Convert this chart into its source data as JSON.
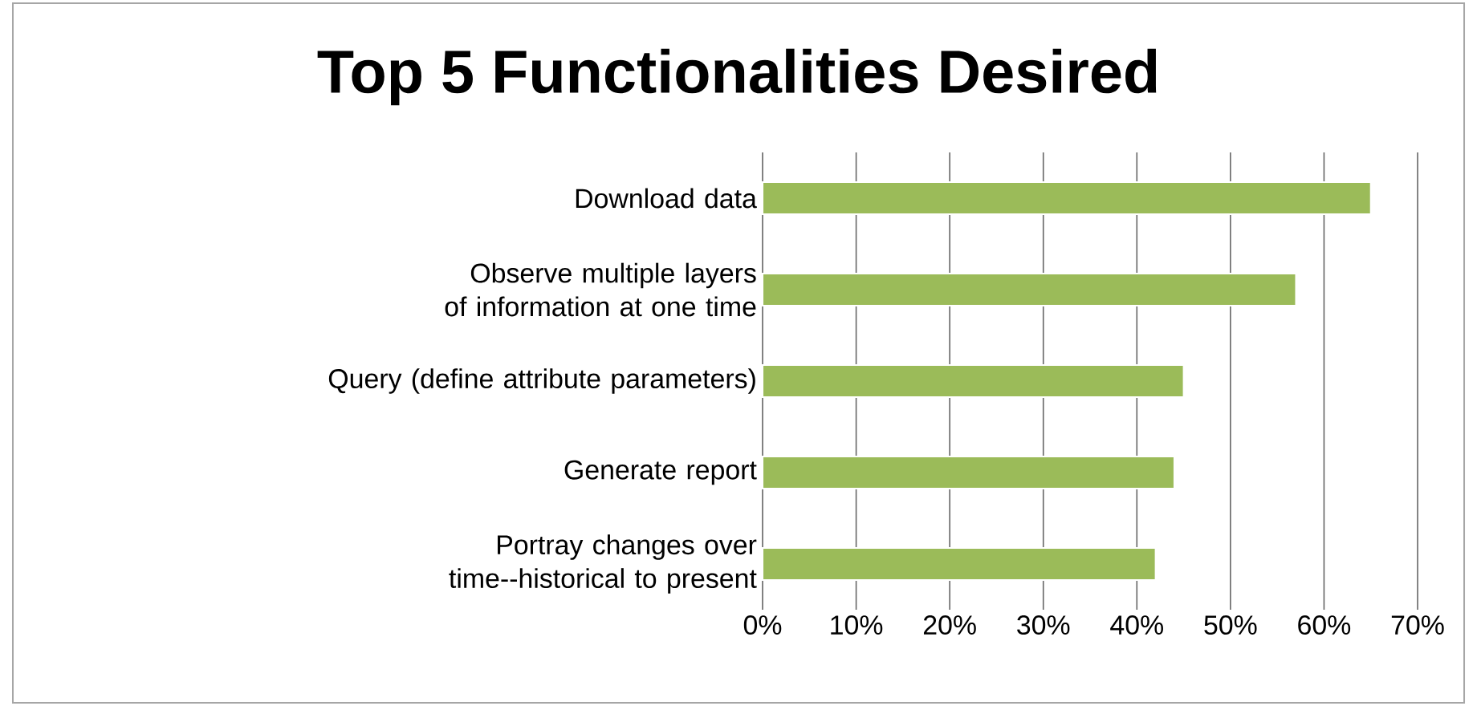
{
  "chart_data": {
    "type": "bar",
    "orientation": "horizontal",
    "title": "Top 5 Functionalities Desired",
    "categories": [
      "Download data",
      "Observe multiple layers of information at one time",
      "Query (define attribute parameters)",
      "Generate report",
      "Portray changes over time--historical to present"
    ],
    "values": [
      65,
      57,
      45,
      44,
      42
    ],
    "color": "#9bbb59",
    "xlim": [
      0,
      70
    ],
    "xticks": [
      {
        "value": 0,
        "label": "0%"
      },
      {
        "value": 10,
        "label": "10%"
      },
      {
        "value": 20,
        "label": "20%"
      },
      {
        "value": 30,
        "label": "30%"
      },
      {
        "value": 40,
        "label": "40%"
      },
      {
        "value": 50,
        "label": "50%"
      },
      {
        "value": 60,
        "label": "60%"
      },
      {
        "value": 70,
        "label": "70%"
      }
    ],
    "grid": "x"
  }
}
